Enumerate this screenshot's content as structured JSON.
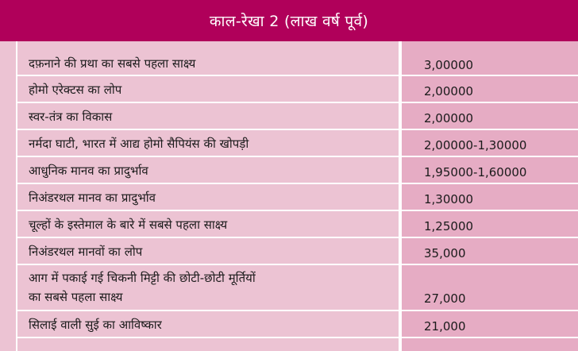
{
  "title": "काल-रेखा 2 (लाख वर्ष पूर्व)",
  "rows": [
    {
      "event": "दफ़नाने की प्रथा का सबसे पहला साक्ष्य",
      "time": "3,00000"
    },
    {
      "event": "होमो एरेक्टस का लोप",
      "time": "2,00000"
    },
    {
      "event": "स्वर-तंत्र का विकास",
      "time": "2,00000"
    },
    {
      "event": "नर्मदा घाटी, भारत में आद्य होमो सैपियंस की खोपड़ी",
      "time": "2,00000-1,30000"
    },
    {
      "event": "आधुनिक मानव का प्रादुर्भाव",
      "time": "1,95000-1,60000"
    },
    {
      "event": "निअंडरथल मानव का प्रादुर्भाव",
      "time": "1,30000"
    },
    {
      "event": "चूल्हों के इस्तेमाल के बारे में सबसे पहला साक्ष्य",
      "time": "1,25000"
    },
    {
      "event": "निअंडरथल मानवों का लोप",
      "time": "35,000"
    },
    {
      "event_line1": "आग में पकाई गई चिकनी मिट्टी की छोटी-छोटी मूर्तियों",
      "event_line2": "का सबसे पहला साक्ष्य",
      "time": "27,000"
    },
    {
      "event": "सिलाई वाली सुई का आविष्कार",
      "time": "21,000"
    }
  ]
}
